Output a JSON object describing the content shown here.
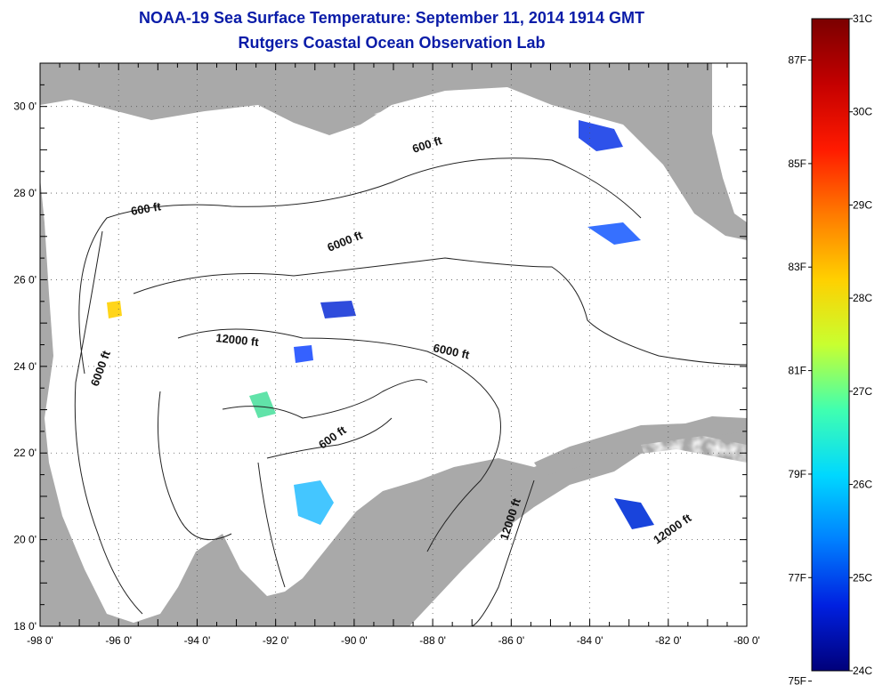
{
  "title": "NOAA-19 Sea Surface Temperature:  September 11, 2014 1914 GMT",
  "subtitle": "Rutgers Coastal Ocean Observation Lab",
  "map": {
    "lon_range": [
      -98,
      -80
    ],
    "lat_range": [
      18,
      31
    ],
    "lon_ticks": [
      "-98 0'",
      "-96 0'",
      "-94 0'",
      "-92 0'",
      "-90 0'",
      "-88 0'",
      "-86 0'",
      "-84 0'",
      "-82 0'",
      "-80 0'"
    ],
    "lat_ticks": [
      "18 0'",
      "20 0'",
      "22 0'",
      "24 0'",
      "26 0'",
      "28 0'",
      "30 0'"
    ],
    "land_color": "#a9a9a9",
    "contour_labels": [
      "600 ft",
      "600 ft",
      "6000 ft",
      "12000 ft",
      "6000 ft",
      "6000 ft",
      "600 ft",
      "12000 ft",
      "12000 ft"
    ]
  },
  "colorbar": {
    "celsius_labels": [
      "31C",
      "30C",
      "29C",
      "28C",
      "27C",
      "26C",
      "25C",
      "24C"
    ],
    "fahrenheit_labels": [
      "87F",
      "85F",
      "83F",
      "81F",
      "79F",
      "77F",
      "75F"
    ],
    "celsius_values": [
      31,
      30,
      29,
      28,
      27,
      26,
      25,
      24
    ],
    "fahrenheit_values": [
      87,
      85,
      83,
      81,
      79,
      77,
      75
    ],
    "colors": [
      "#7a0000",
      "#c40000",
      "#ff1a00",
      "#ff7a00",
      "#ffd000",
      "#c8ff30",
      "#40ffb0",
      "#00d8ff",
      "#0080ff",
      "#0020e0",
      "#00007a"
    ]
  }
}
